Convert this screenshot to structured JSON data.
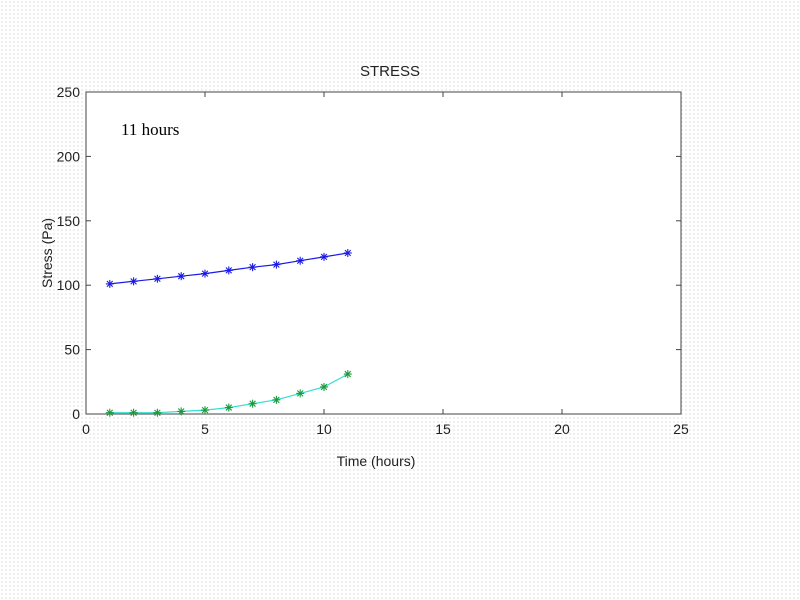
{
  "chart_data": {
    "type": "line",
    "title": "STRESS",
    "xlabel": "Time (hours)",
    "ylabel": "Stress (Pa)",
    "xlim": [
      0,
      25
    ],
    "ylim": [
      0,
      250
    ],
    "xticks": [
      0,
      5,
      10,
      15,
      20,
      25
    ],
    "yticks": [
      0,
      50,
      100,
      150,
      200,
      250
    ],
    "grid": false,
    "annotation": "11 hours",
    "series": [
      {
        "color": "#1a1ae6",
        "marker_color": "#1a1ae6",
        "marker": "asterisk",
        "x": [
          1,
          2,
          3,
          4,
          5,
          6,
          7,
          8,
          9,
          10,
          11
        ],
        "y": [
          101,
          103,
          105,
          107,
          109,
          111.5,
          114,
          116,
          119,
          122,
          125
        ]
      },
      {
        "color": "#33e0d0",
        "marker_color": "#1a9a3a",
        "marker": "asterisk",
        "x": [
          1,
          2,
          3,
          4,
          5,
          6,
          7,
          8,
          9,
          10,
          11
        ],
        "y": [
          1,
          1,
          1,
          2,
          3,
          5,
          8,
          11,
          16,
          21,
          31
        ]
      }
    ]
  }
}
